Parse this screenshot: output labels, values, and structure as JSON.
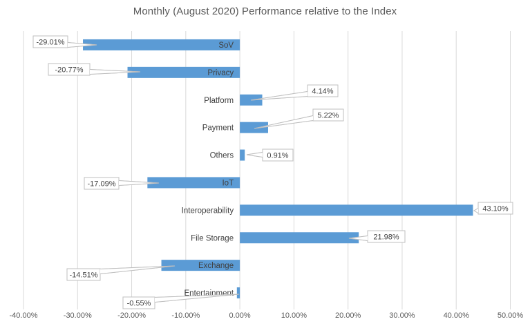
{
  "chart_data": {
    "type": "bar",
    "orientation": "horizontal",
    "title": "Monthly (August 2020) Performance relative to the Index",
    "categories": [
      "SoV",
      "Privacy",
      "Platform",
      "Payment",
      "Others",
      "IoT",
      "Interoperability",
      "File Storage",
      "Exchange",
      "Entertainment"
    ],
    "values": [
      -29.01,
      -20.77,
      4.14,
      5.22,
      0.91,
      -17.09,
      43.1,
      21.98,
      -14.51,
      -0.55
    ],
    "data_labels": [
      "-29.01%",
      "-20.77%",
      "4.14%",
      "5.22%",
      "0.91%",
      "-17.09%",
      "43.10%",
      "21.98%",
      "-14.51%",
      "-0.55%"
    ],
    "x_ticks": [
      "-40.00%",
      "-30.00%",
      "-20.00%",
      "-10.00%",
      "0.00%",
      "10.00%",
      "20.00%",
      "30.00%",
      "40.00%",
      "50.00%"
    ],
    "x_tick_values": [
      -40,
      -30,
      -20,
      -10,
      0,
      10,
      20,
      30,
      40,
      50
    ],
    "xlim": [
      -40,
      50
    ],
    "xlabel": "",
    "ylabel": "",
    "grid": true,
    "legend": false,
    "colors": {
      "bar": "#5B9BD5",
      "gridline": "#D9D9D9",
      "axis_text": "#595959",
      "category_text": "#404040",
      "callout_border": "#BFBFBF",
      "callout_text": "#404040",
      "callout_fill": "#FFFFFF",
      "background": "#FFFFFF"
    }
  }
}
